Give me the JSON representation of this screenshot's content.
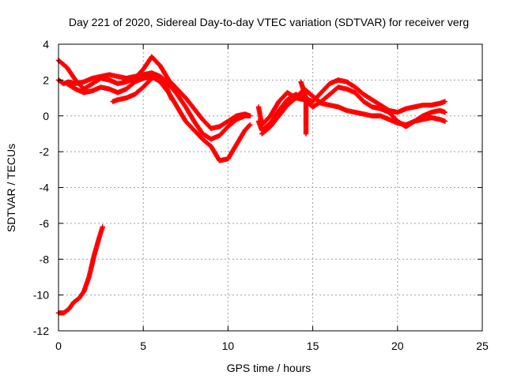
{
  "chart_data": {
    "type": "scatter",
    "title": "Day 221 of 2020, Sidereal Day-to-day VTEC variation (SDTVAR) for receiver verg",
    "xlabel": "GPS time / hours",
    "ylabel": "SDTVAR / TECUs",
    "xlim": [
      0,
      25
    ],
    "ylim": [
      -12,
      4
    ],
    "xticks": [
      0,
      5,
      10,
      15,
      20,
      25
    ],
    "yticks": [
      -12,
      -10,
      -8,
      -6,
      -4,
      -2,
      0,
      2,
      4
    ],
    "grid": true,
    "marker": "+",
    "color": "#ff0000",
    "series": [
      {
        "name": "track-1",
        "x": [
          0,
          0.3,
          0.6,
          1,
          1.5,
          2,
          2.5,
          3,
          3.5,
          4,
          4.5,
          5,
          5.5,
          6,
          6.5,
          7,
          7.5,
          8,
          8.5,
          9,
          9.5,
          10,
          10.5,
          11,
          11.3
        ],
        "y": [
          2.0,
          1.8,
          1.9,
          1.8,
          1.9,
          2.1,
          2.2,
          2.3,
          2.2,
          2.1,
          2.2,
          2.3,
          2.4,
          2.2,
          1.8,
          1.2,
          0.5,
          -0.3,
          -1.0,
          -1.3,
          -1.1,
          -0.6,
          -0.2,
          0.0,
          0.0
        ]
      },
      {
        "name": "track-2",
        "x": [
          0,
          0.5,
          1,
          1.5,
          2,
          2.5,
          3,
          3.5,
          4,
          4.5,
          5,
          5.5,
          6,
          6.5,
          7,
          7.5,
          8,
          8.5,
          9,
          9.5,
          10,
          10.5,
          11,
          11.3
        ],
        "y": [
          3.1,
          2.7,
          2.0,
          1.5,
          1.8,
          2.1,
          2.0,
          1.8,
          1.9,
          2.1,
          2.6,
          3.3,
          2.8,
          2.0,
          1.5,
          1.0,
          0.4,
          -0.2,
          -0.7,
          -0.6,
          -0.3,
          0.0,
          0.1,
          0.0
        ]
      },
      {
        "name": "track-3",
        "x": [
          0.5,
          1,
          1.5,
          2,
          2.5,
          3,
          3.5,
          4,
          4.5,
          5,
          5.5,
          6,
          6.5,
          7,
          7.5,
          8,
          8.5,
          9,
          9.5,
          10,
          10.5,
          11,
          11.3
        ],
        "y": [
          1.8,
          1.5,
          1.3,
          1.4,
          1.6,
          1.5,
          1.3,
          1.5,
          1.9,
          2.1,
          2.2,
          1.9,
          1.3,
          0.5,
          -0.3,
          -0.8,
          -1.3,
          -1.7,
          -2.5,
          -2.4,
          -1.6,
          -0.8,
          -0.5
        ]
      },
      {
        "name": "track-4",
        "x": [
          3.2,
          3.5,
          4,
          4.5,
          5,
          5.5,
          6,
          6.3,
          6.5,
          6.7
        ],
        "y": [
          0.8,
          0.9,
          1.0,
          1.2,
          1.6,
          2.1,
          2.2,
          1.8,
          1.3,
          0.9
        ]
      },
      {
        "name": "track-5",
        "x": [
          0,
          0.3,
          0.6,
          0.9,
          1.2,
          1.5,
          1.8,
          2.1,
          2.4,
          2.6
        ],
        "y": [
          -11.0,
          -11.0,
          -10.8,
          -10.4,
          -10.2,
          -9.8,
          -9.0,
          -7.8,
          -6.8,
          -6.2
        ]
      },
      {
        "name": "track-6",
        "x": [
          11.8,
          12,
          12.5,
          13,
          13.5,
          14,
          14.5,
          15,
          15.5,
          16,
          16.5,
          17,
          17.5,
          18,
          18.5,
          19,
          19.5,
          20,
          20.5,
          21,
          21.5,
          22,
          22.5,
          22.8
        ],
        "y": [
          -0.3,
          -0.8,
          -0.4,
          0.3,
          0.9,
          1.2,
          1.0,
          0.8,
          1.3,
          1.8,
          2.0,
          1.9,
          1.6,
          1.2,
          0.9,
          0.6,
          0.3,
          0.2,
          0.4,
          0.5,
          0.6,
          0.6,
          0.7,
          0.8
        ]
      },
      {
        "name": "track-7",
        "x": [
          11.8,
          12,
          12.5,
          13,
          13.5,
          14,
          14.5,
          15,
          15.5,
          16,
          16.5,
          17,
          17.5,
          18,
          18.5,
          19,
          19.5,
          20,
          20.5,
          21,
          21.5,
          22,
          22.5,
          22.8
        ],
        "y": [
          0.5,
          -0.5,
          0.0,
          0.8,
          1.3,
          1.0,
          0.9,
          0.5,
          0.8,
          1.2,
          1.6,
          1.5,
          1.3,
          0.8,
          0.5,
          0.4,
          0.2,
          -0.3,
          -0.6,
          -0.3,
          0.0,
          0.2,
          0.3,
          0.2
        ]
      },
      {
        "name": "track-8",
        "x": [
          12,
          12.5,
          13,
          13.5,
          14,
          14.5,
          15,
          15.5,
          16,
          16.5,
          17,
          17.5,
          18,
          18.5,
          19,
          19.5,
          20,
          20.5,
          21,
          21.5,
          22,
          22.5,
          22.8
        ],
        "y": [
          -1.0,
          -0.6,
          0.0,
          0.6,
          1.0,
          1.5,
          1.1,
          0.7,
          0.6,
          0.5,
          0.3,
          0.2,
          0.1,
          0.0,
          0.0,
          -0.2,
          -0.4,
          -0.5,
          -0.3,
          -0.2,
          -0.1,
          -0.2,
          -0.3
        ]
      },
      {
        "name": "track-9",
        "x": [
          14.6,
          14.6,
          14.6,
          14.6,
          14.6
        ],
        "y": [
          0.8,
          0.2,
          -0.4,
          -0.8,
          -1.0
        ]
      },
      {
        "name": "track-10",
        "x": [
          14.3,
          14.4,
          14.5,
          14.6
        ],
        "y": [
          1.9,
          1.6,
          1.3,
          1.0
        ]
      }
    ]
  }
}
